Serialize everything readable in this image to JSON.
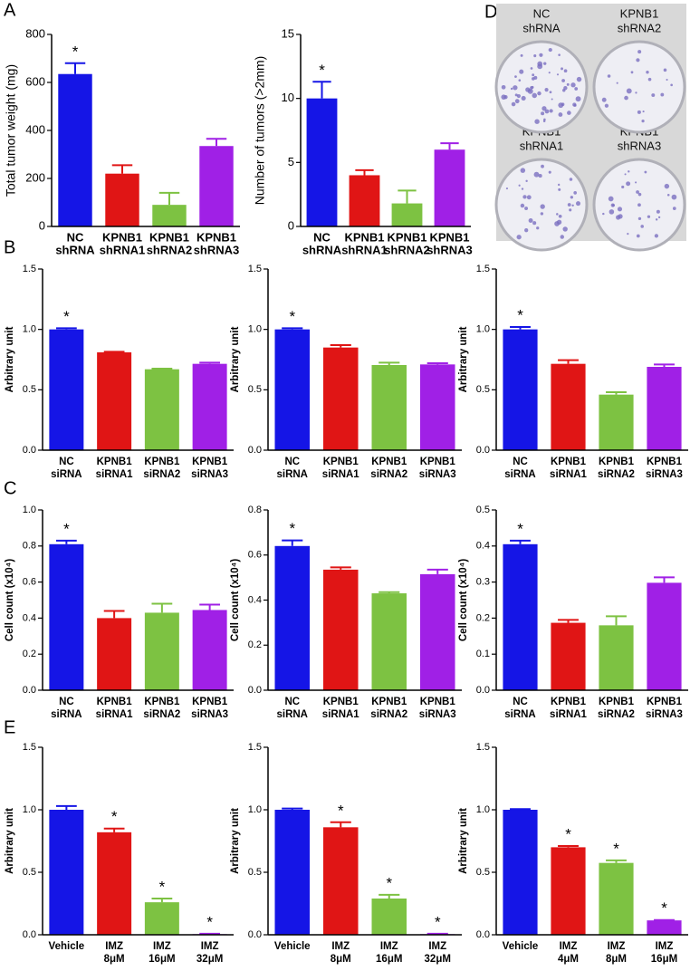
{
  "panel_labels": [
    "A",
    "B",
    "C",
    "D",
    "E"
  ],
  "panel_d": {
    "images": [
      {
        "label": [
          "NC",
          "shRNA"
        ]
      },
      {
        "label": [
          "KPNB1",
          "shRNA2"
        ]
      },
      {
        "label": [
          "KPNB1",
          "shRNA1"
        ]
      },
      {
        "label": [
          "KPNB1",
          "shRNA3"
        ]
      }
    ]
  },
  "chart_data": [
    {
      "type": "bar",
      "ylabel": "Total tumor weight (mg)",
      "categories": [
        [
          "NC",
          "shRNA"
        ],
        [
          "KPNB1",
          "shRNA1"
        ],
        [
          "KPNB1",
          "shRNA2"
        ],
        [
          "KPNB1",
          "shRNA3"
        ]
      ],
      "values": [
        635,
        220,
        90,
        335
      ],
      "errors": [
        45,
        35,
        50,
        30
      ],
      "annotations": [
        "*",
        null,
        null,
        null
      ],
      "colors": [
        "#1515e6",
        "#e01515",
        "#7dc242",
        "#a020e6"
      ],
      "ylim": [
        0,
        800
      ],
      "yticks": [
        0,
        200,
        400,
        600,
        800
      ]
    },
    {
      "type": "bar",
      "ylabel": "Number of tumors (>2mm)",
      "categories": [
        [
          "NC",
          "shRNA"
        ],
        [
          "KPNB1",
          "shRNA1"
        ],
        [
          "KPNB1",
          "shRNA2"
        ],
        [
          "KPNB1",
          "shRNA3"
        ]
      ],
      "values": [
        10,
        4,
        1.8,
        6
      ],
      "errors": [
        1.3,
        0.4,
        1,
        0.5
      ],
      "annotations": [
        "*",
        null,
        null,
        null
      ],
      "colors": [
        "#1515e6",
        "#e01515",
        "#7dc242",
        "#a020e6"
      ],
      "ylim": [
        0,
        15
      ],
      "yticks": [
        0,
        5,
        10,
        15
      ]
    },
    {
      "type": "bar",
      "ylabel": "Arbitrary unit",
      "categories": [
        [
          "NC",
          "siRNA"
        ],
        [
          "KPNB1",
          "siRNA1"
        ],
        [
          "KPNB1",
          "siRNA2"
        ],
        [
          "KPNB1",
          "siRNA3"
        ]
      ],
      "values": [
        1.0,
        0.81,
        0.67,
        0.715
      ],
      "errors": [
        0.01,
        0.005,
        0.005,
        0.01
      ],
      "annotations": [
        "*",
        null,
        null,
        null
      ],
      "colors": [
        "#1515e6",
        "#e01515",
        "#7dc242",
        "#a020e6"
      ],
      "ylim": [
        0,
        1.5
      ],
      "yticks": [
        {
          "value": 0,
          "label": "0.0"
        },
        0.5,
        {
          "value": 1,
          "label": "1.0"
        },
        1.5
      ]
    },
    {
      "type": "bar",
      "ylabel": "Arbitrary unit",
      "categories": [
        [
          "NC",
          "siRNA"
        ],
        [
          "KPNB1",
          "siRNA1"
        ],
        [
          "KPNB1",
          "siRNA2"
        ],
        [
          "KPNB1",
          "siRNA3"
        ]
      ],
      "values": [
        1.0,
        0.85,
        0.705,
        0.71
      ],
      "errors": [
        0.01,
        0.02,
        0.02,
        0.01
      ],
      "annotations": [
        "*",
        null,
        null,
        null
      ],
      "colors": [
        "#1515e6",
        "#e01515",
        "#7dc242",
        "#a020e6"
      ],
      "ylim": [
        0,
        1.5
      ],
      "yticks": [
        {
          "value": 0,
          "label": "0.0"
        },
        0.5,
        {
          "value": 1,
          "label": "1.0"
        },
        1.5
      ]
    },
    {
      "type": "bar",
      "ylabel": "Arbitrary unit",
      "categories": [
        [
          "NC",
          "siRNA"
        ],
        [
          "KPNB1",
          "siRNA1"
        ],
        [
          "KPNB1",
          "siRNA2"
        ],
        [
          "KPNB1",
          "siRNA3"
        ]
      ],
      "values": [
        1.0,
        0.715,
        0.46,
        0.69
      ],
      "errors": [
        0.02,
        0.03,
        0.02,
        0.02
      ],
      "annotations": [
        "*",
        null,
        null,
        null
      ],
      "colors": [
        "#1515e6",
        "#e01515",
        "#7dc242",
        "#a020e6"
      ],
      "ylim": [
        0,
        1.5
      ],
      "yticks": [
        {
          "value": 0,
          "label": "0.0"
        },
        0.5,
        {
          "value": 1,
          "label": "1.0"
        },
        1.5
      ]
    },
    {
      "type": "bar",
      "ylabel": "Cell count (x10⁴)",
      "categories": [
        [
          "NC",
          "siRNA"
        ],
        [
          "KPNB1",
          "siRNA1"
        ],
        [
          "KPNB1",
          "siRNA2"
        ],
        [
          "KPNB1",
          "siRNA3"
        ]
      ],
      "values": [
        0.81,
        0.4,
        0.43,
        0.445
      ],
      "errors": [
        0.02,
        0.04,
        0.05,
        0.03
      ],
      "annotations": [
        "*",
        null,
        null,
        null
      ],
      "colors": [
        "#1515e6",
        "#e01515",
        "#7dc242",
        "#a020e6"
      ],
      "ylim": [
        0,
        1.0
      ],
      "yticks": [
        {
          "value": 0,
          "label": "0.0"
        },
        0.2,
        0.4,
        0.6,
        0.8,
        {
          "value": 1,
          "label": "1.0"
        }
      ]
    },
    {
      "type": "bar",
      "ylabel": "Cell count (x10⁴)",
      "categories": [
        [
          "NC",
          "siRNA"
        ],
        [
          "KPNB1",
          "siRNA1"
        ],
        [
          "KPNB1",
          "siRNA2"
        ],
        [
          "KPNB1",
          "siRNA3"
        ]
      ],
      "values": [
        0.64,
        0.535,
        0.43,
        0.515
      ],
      "errors": [
        0.025,
        0.01,
        0.005,
        0.02
      ],
      "annotations": [
        "*",
        null,
        null,
        null
      ],
      "colors": [
        "#1515e6",
        "#e01515",
        "#7dc242",
        "#a020e6"
      ],
      "ylim": [
        0,
        0.8
      ],
      "yticks": [
        {
          "value": 0,
          "label": "0.0"
        },
        0.2,
        0.4,
        0.6,
        0.8
      ]
    },
    {
      "type": "bar",
      "ylabel": "Cell count (x10⁴)",
      "categories": [
        [
          "NC",
          "siRNA"
        ],
        [
          "KPNB1",
          "siRNA1"
        ],
        [
          "KPNB1",
          "siRNA2"
        ],
        [
          "KPNB1",
          "siRNA3"
        ]
      ],
      "values": [
        0.405,
        0.187,
        0.18,
        0.298
      ],
      "errors": [
        0.01,
        0.008,
        0.025,
        0.015
      ],
      "annotations": [
        "*",
        null,
        null,
        null
      ],
      "colors": [
        "#1515e6",
        "#e01515",
        "#7dc242",
        "#a020e6"
      ],
      "ylim": [
        0,
        0.5
      ],
      "yticks": [
        {
          "value": 0,
          "label": "0.0"
        },
        0.1,
        0.2,
        0.3,
        0.4,
        0.5
      ]
    },
    {
      "type": "bar",
      "ylabel": "Arbitrary unit",
      "categories": [
        [
          "Vehicle"
        ],
        [
          "IMZ",
          "8μM"
        ],
        [
          "IMZ",
          "16μM"
        ],
        [
          "IMZ",
          "32μM"
        ]
      ],
      "values": [
        1.0,
        0.82,
        0.26,
        0.005
      ],
      "errors": [
        0.03,
        0.03,
        0.03,
        0.003
      ],
      "annotations": [
        null,
        "*",
        "*",
        "*"
      ],
      "colors": [
        "#1515e6",
        "#e01515",
        "#7dc242",
        "#a020e6"
      ],
      "ylim": [
        0,
        1.5
      ],
      "yticks": [
        {
          "value": 0,
          "label": "0.0"
        },
        0.5,
        {
          "value": 1,
          "label": "1.0"
        },
        1.5
      ]
    },
    {
      "type": "bar",
      "ylabel": "Arbitrary unit",
      "categories": [
        [
          "Vehicle"
        ],
        [
          "IMZ",
          "8μM"
        ],
        [
          "IMZ",
          "16μM"
        ],
        [
          "IMZ",
          "32μM"
        ]
      ],
      "values": [
        1.0,
        0.86,
        0.29,
        0.005
      ],
      "errors": [
        0.01,
        0.04,
        0.03,
        0.003
      ],
      "annotations": [
        null,
        "*",
        "*",
        "*"
      ],
      "colors": [
        "#1515e6",
        "#e01515",
        "#7dc242",
        "#a020e6"
      ],
      "ylim": [
        0,
        1.5
      ],
      "yticks": [
        {
          "value": 0,
          "label": "0.0"
        },
        0.5,
        {
          "value": 1,
          "label": "1.0"
        },
        1.5
      ]
    },
    {
      "type": "bar",
      "ylabel": "Arbitrary unit",
      "categories": [
        [
          "Vehicle"
        ],
        [
          "IMZ",
          "4μM"
        ],
        [
          "IMZ",
          "8μM"
        ],
        [
          "IMZ",
          "16μM"
        ]
      ],
      "values": [
        1.0,
        0.7,
        0.575,
        0.115
      ],
      "errors": [
        0.005,
        0.01,
        0.02,
        0.003
      ],
      "annotations": [
        null,
        "*",
        "*",
        "*"
      ],
      "colors": [
        "#1515e6",
        "#e01515",
        "#7dc242",
        "#a020e6"
      ],
      "ylim": [
        0,
        1.5
      ],
      "yticks": [
        {
          "value": 0,
          "label": "0.0"
        },
        0.5,
        {
          "value": 1,
          "label": "1.0"
        },
        1.5
      ]
    }
  ]
}
